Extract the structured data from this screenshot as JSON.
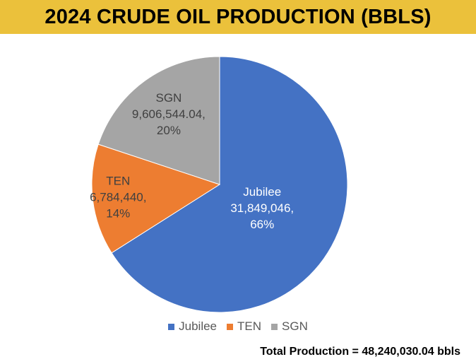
{
  "header": {
    "title": "2024 CRUDE OIL PRODUCTION (BBLS)",
    "band_color": "#EBC13B"
  },
  "footer": {
    "total_text": "Total Production = 48,240,030.04 bbls"
  },
  "chart_data": {
    "type": "pie",
    "title": "2024 CRUDE OIL PRODUCTION (BBLS)",
    "start_angle_deg": 0,
    "direction": "clockwise",
    "legend_position": "bottom",
    "slices": [
      {
        "name": "Jubilee",
        "value": 31849046,
        "value_label": "31,849,046,",
        "percent_label": "66%",
        "color": "#4472C4",
        "label_color": "#FFFFFF"
      },
      {
        "name": "TEN",
        "value": 6784440,
        "value_label": "6,784,440,",
        "percent_label": "14%",
        "color": "#ED7D31",
        "label_color": "#404040"
      },
      {
        "name": "SGN",
        "value": 9606544.04,
        "value_label": "9,606,544.04,",
        "percent_label": "20%",
        "color": "#A5A5A5",
        "label_color": "#404040"
      }
    ]
  }
}
